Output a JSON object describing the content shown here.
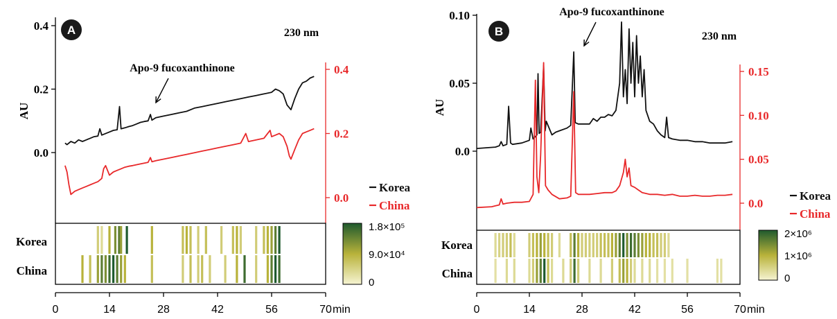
{
  "colors": {
    "korea": "#111111",
    "china": "#e8282a",
    "heat_low": "#f6f4d2",
    "heat_mid": "#b8b23a",
    "heat_high": "#1f5a2e",
    "badge": "#1a1a1a"
  },
  "chart_data": [
    {
      "panel": "A",
      "type": "line",
      "wavelength": "230 nm",
      "annotation": "Apo-9 fucoxanthinone",
      "ylabel": "AU",
      "xlabel_unit": "min",
      "x_ticks": [
        "0",
        "14",
        "28",
        "42",
        "56",
        "70"
      ],
      "xlim": [
        0,
        70
      ],
      "left_axis": {
        "ticks": [
          "0.0",
          "0.2",
          "0.4"
        ],
        "ylim": [
          -0.1,
          0.4
        ]
      },
      "right_axis": {
        "ticks": [
          "0.0",
          "0.2",
          "0.4"
        ],
        "ylim": [
          -0.12,
          0.4
        ]
      },
      "legend": [
        "Korea",
        "China"
      ],
      "series": [
        {
          "name": "Korea",
          "axis": "left",
          "x": [
            2.5,
            3,
            4,
            5,
            6,
            7,
            8,
            9,
            10,
            11,
            11.5,
            12,
            13,
            14,
            15,
            16,
            16.6,
            17,
            18,
            19,
            20,
            21,
            22,
            23,
            24,
            24.6,
            25,
            26,
            28,
            30,
            32,
            34,
            36,
            38,
            40,
            42,
            44,
            46,
            48,
            50,
            52,
            54,
            56,
            57,
            58,
            59,
            60,
            61,
            62,
            63,
            64,
            65,
            66,
            67
          ],
          "y": [
            0.03,
            0.025,
            0.035,
            0.03,
            0.04,
            0.035,
            0.04,
            0.045,
            0.05,
            0.052,
            0.075,
            0.055,
            0.06,
            0.065,
            0.07,
            0.072,
            0.145,
            0.075,
            0.078,
            0.082,
            0.085,
            0.09,
            0.095,
            0.098,
            0.1,
            0.12,
            0.102,
            0.11,
            0.115,
            0.12,
            0.125,
            0.13,
            0.14,
            0.145,
            0.15,
            0.155,
            0.16,
            0.165,
            0.17,
            0.175,
            0.18,
            0.185,
            0.19,
            0.2,
            0.195,
            0.185,
            0.15,
            0.135,
            0.17,
            0.2,
            0.22,
            0.225,
            0.235,
            0.24
          ]
        },
        {
          "name": "China",
          "axis": "right",
          "x": [
            2.5,
            3,
            3.5,
            4,
            5,
            6,
            7,
            8,
            9,
            10,
            11,
            12,
            12.5,
            13,
            14,
            15,
            16,
            17,
            18,
            19,
            20,
            22,
            24,
            24.6,
            25,
            26,
            28,
            30,
            32,
            34,
            36,
            38,
            40,
            42,
            44,
            46,
            48,
            49.3,
            50,
            52,
            54,
            55.6,
            56,
            57,
            58,
            59,
            60,
            60.6,
            61,
            62,
            63,
            64,
            65,
            66,
            67
          ],
          "y": [
            0.1,
            0.08,
            0.04,
            0.01,
            0.02,
            0.025,
            0.03,
            0.035,
            0.04,
            0.045,
            0.05,
            0.06,
            0.09,
            0.1,
            0.07,
            0.08,
            0.085,
            0.09,
            0.095,
            0.098,
            0.1,
            0.105,
            0.11,
            0.125,
            0.112,
            0.115,
            0.12,
            0.125,
            0.13,
            0.135,
            0.14,
            0.145,
            0.15,
            0.155,
            0.16,
            0.165,
            0.17,
            0.2,
            0.175,
            0.18,
            0.185,
            0.21,
            0.19,
            0.195,
            0.2,
            0.19,
            0.16,
            0.13,
            0.12,
            0.15,
            0.18,
            0.2,
            0.205,
            0.21,
            0.215
          ]
        }
      ],
      "heatmap": {
        "rows": [
          "Korea",
          "China"
        ],
        "colorbar_labels": [
          "1.8×10⁵",
          "9.0×10⁴",
          "0"
        ],
        "Korea": [
          [
            11,
            0.3
          ],
          [
            12,
            0.2
          ],
          [
            14,
            0.5
          ],
          [
            15.5,
            0.7
          ],
          [
            16.5,
            0.8
          ],
          [
            17,
            0.6
          ],
          [
            18.5,
            1.0
          ],
          [
            25,
            0.5
          ],
          [
            33,
            0.4
          ],
          [
            34,
            0.5
          ],
          [
            35,
            0.4
          ],
          [
            37,
            0.3
          ],
          [
            39,
            0.4
          ],
          [
            43,
            0.3
          ],
          [
            46,
            0.4
          ],
          [
            47,
            0.5
          ],
          [
            48,
            0.3
          ],
          [
            52,
            0.3
          ],
          [
            54,
            0.4
          ],
          [
            55,
            0.5
          ],
          [
            56,
            0.6
          ],
          [
            57,
            0.8
          ],
          [
            58,
            1.0
          ]
        ],
        "China": [
          [
            7,
            0.5
          ],
          [
            9,
            0.4
          ],
          [
            11,
            0.6
          ],
          [
            12,
            0.8
          ],
          [
            13,
            0.7
          ],
          [
            14,
            0.9
          ],
          [
            15,
            1.0
          ],
          [
            16,
            0.8
          ],
          [
            17,
            0.6
          ],
          [
            18,
            0.5
          ],
          [
            25,
            0.4
          ],
          [
            33,
            0.3
          ],
          [
            35,
            0.4
          ],
          [
            37,
            0.3
          ],
          [
            38,
            0.4
          ],
          [
            40,
            0.3
          ],
          [
            44,
            0.3
          ],
          [
            47,
            0.5
          ],
          [
            49,
            0.9
          ],
          [
            52,
            0.3
          ],
          [
            55,
            0.5
          ],
          [
            56,
            0.8
          ],
          [
            57,
            1.0
          ],
          [
            58,
            0.9
          ]
        ]
      }
    },
    {
      "panel": "B",
      "type": "line",
      "wavelength": "230 nm",
      "annotation": "Apo-9 fucoxanthinone",
      "ylabel": "AU",
      "xlabel_unit": "min",
      "x_ticks": [
        "0",
        "14",
        "28",
        "42",
        "56",
        "70"
      ],
      "xlim": [
        0,
        70
      ],
      "left_axis": {
        "ticks": [
          "0.0",
          "0.05",
          "0.10"
        ],
        "ylim": [
          -0.05,
          0.1
        ]
      },
      "right_axis": {
        "ticks": [
          "0.0",
          "0.05",
          "0.10",
          "0.15"
        ],
        "ylim": [
          -0.015,
          0.16
        ]
      },
      "legend": [
        "Korea",
        "China"
      ],
      "series": [
        {
          "name": "Korea",
          "axis": "left",
          "x": [
            0,
            5,
            6,
            6.5,
            7,
            8,
            8.5,
            9,
            9.5,
            12,
            14,
            14.4,
            15,
            16,
            16.3,
            16.6,
            17,
            17.8,
            18.2,
            18.5,
            20,
            21,
            22,
            24,
            25,
            25.8,
            26.2,
            27,
            30,
            31,
            32,
            33,
            34,
            35,
            36,
            37,
            38,
            38.5,
            39,
            39.5,
            40,
            40.5,
            41,
            41.5,
            42,
            42.5,
            43,
            43.5,
            44,
            44.5,
            45,
            46,
            47,
            48,
            49,
            50,
            50.5,
            51,
            52,
            54,
            56,
            58,
            60,
            62,
            64,
            66,
            68
          ],
          "y": [
            0.002,
            0.003,
            0.004,
            0.007,
            0.004,
            0.005,
            0.033,
            0.006,
            0.005,
            0.006,
            0.008,
            0.017,
            0.009,
            0.012,
            0.057,
            0.013,
            0.014,
            0.063,
            0.015,
            0.022,
            0.012,
            0.014,
            0.015,
            0.017,
            0.019,
            0.073,
            0.021,
            0.02,
            0.02,
            0.024,
            0.022,
            0.025,
            0.025,
            0.027,
            0.026,
            0.03,
            0.05,
            0.095,
            0.04,
            0.06,
            0.035,
            0.09,
            0.05,
            0.08,
            0.04,
            0.085,
            0.05,
            0.07,
            0.04,
            0.06,
            0.03,
            0.022,
            0.02,
            0.015,
            0.012,
            0.01,
            0.025,
            0.01,
            0.009,
            0.008,
            0.008,
            0.007,
            0.007,
            0.006,
            0.006,
            0.006,
            0.007
          ]
        },
        {
          "name": "China",
          "axis": "right",
          "x": [
            0,
            4,
            5,
            6,
            6.5,
            7,
            8,
            10,
            12,
            14,
            15,
            15.6,
            16,
            16.5,
            17,
            17.8,
            18.3,
            19,
            20,
            22,
            24,
            25,
            25.8,
            26.3,
            27,
            30,
            32,
            34,
            36,
            37,
            38,
            39,
            39.5,
            40,
            40.5,
            41,
            42,
            43,
            44,
            46,
            48,
            50,
            52,
            54,
            56,
            58,
            60,
            62,
            64,
            66,
            68
          ],
          "y": [
            -0.005,
            -0.004,
            -0.003,
            -0.002,
            0.005,
            -0.001,
            0.0,
            0.001,
            0.001,
            0.002,
            0.01,
            0.14,
            0.03,
            0.012,
            0.055,
            0.16,
            0.02,
            0.015,
            0.01,
            0.005,
            0.006,
            0.008,
            0.127,
            0.012,
            0.01,
            0.01,
            0.011,
            0.012,
            0.012,
            0.014,
            0.02,
            0.035,
            0.05,
            0.03,
            0.04,
            0.02,
            0.018,
            0.015,
            0.012,
            0.01,
            0.01,
            0.009,
            0.01,
            0.008,
            0.008,
            0.009,
            0.008,
            0.008,
            0.009,
            0.009,
            0.01
          ]
        }
      ],
      "heatmap": {
        "rows": [
          "Korea",
          "China"
        ],
        "colorbar_labels": [
          "2×10⁶",
          "1×10⁶",
          "0"
        ],
        "Korea": [
          [
            5,
            0.2
          ],
          [
            6,
            0.25
          ],
          [
            7,
            0.3
          ],
          [
            8,
            0.3
          ],
          [
            9,
            0.4
          ],
          [
            10,
            0.2
          ],
          [
            14,
            0.3
          ],
          [
            15,
            0.4
          ],
          [
            16,
            0.5
          ],
          [
            17,
            0.6
          ],
          [
            18,
            0.5
          ],
          [
            19,
            0.4
          ],
          [
            20,
            0.3
          ],
          [
            22,
            0.2
          ],
          [
            25,
            0.4
          ],
          [
            26,
            0.8
          ],
          [
            27,
            0.5
          ],
          [
            28,
            0.3
          ],
          [
            29,
            0.3
          ],
          [
            30,
            0.3
          ],
          [
            31,
            0.3
          ],
          [
            32,
            0.3
          ],
          [
            33,
            0.4
          ],
          [
            34,
            0.4
          ],
          [
            35,
            0.4
          ],
          [
            36,
            0.5
          ],
          [
            37,
            0.6
          ],
          [
            38,
            0.8
          ],
          [
            39,
            1.0
          ],
          [
            40,
            0.7
          ],
          [
            41,
            0.9
          ],
          [
            42,
            0.8
          ],
          [
            43,
            0.7
          ],
          [
            44,
            0.6
          ],
          [
            45,
            0.5
          ],
          [
            46,
            0.5
          ],
          [
            47,
            0.4
          ],
          [
            48,
            0.4
          ],
          [
            49,
            0.3
          ],
          [
            50,
            0.3
          ],
          [
            51,
            0.2
          ]
        ],
        "China": [
          [
            5,
            0.15
          ],
          [
            8,
            0.2
          ],
          [
            10,
            0.2
          ],
          [
            14,
            0.2
          ],
          [
            15,
            0.3
          ],
          [
            16,
            0.6
          ],
          [
            17,
            0.8
          ],
          [
            18,
            1.0
          ],
          [
            19,
            0.4
          ],
          [
            20,
            0.2
          ],
          [
            23,
            0.2
          ],
          [
            25,
            0.3
          ],
          [
            26,
            0.9
          ],
          [
            27,
            0.3
          ],
          [
            30,
            0.2
          ],
          [
            33,
            0.2
          ],
          [
            36,
            0.3
          ],
          [
            38,
            0.4
          ],
          [
            39,
            0.6
          ],
          [
            40,
            0.5
          ],
          [
            41,
            0.3
          ],
          [
            42,
            0.2
          ],
          [
            44,
            0.2
          ],
          [
            46,
            0.2
          ],
          [
            48,
            0.15
          ],
          [
            50,
            0.15
          ],
          [
            52,
            0.15
          ],
          [
            56,
            0.15
          ],
          [
            64,
            0.15
          ],
          [
            65,
            0.15
          ]
        ]
      }
    }
  ]
}
